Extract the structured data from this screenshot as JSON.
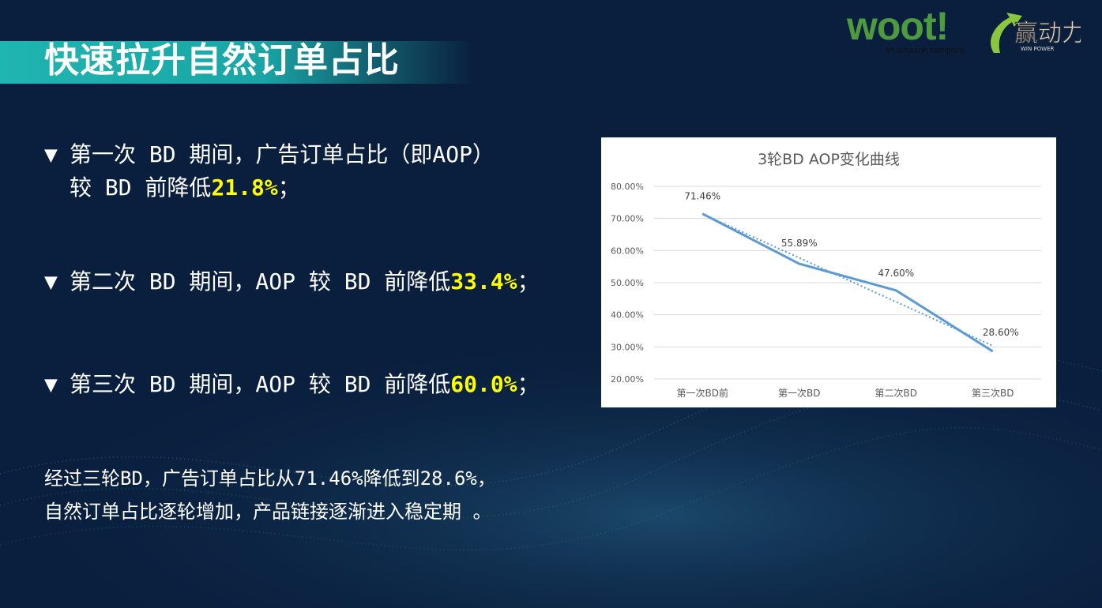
{
  "slide": {
    "title": "快速拉升自然订单占比",
    "logos": {
      "woot": "woot!",
      "woot_sub": "an amazon company",
      "winpower": "赢动力 WIN POWER"
    },
    "bullets": [
      {
        "icon": "triangle-down-icon",
        "line1": "第一次 BD 期间，广告订单占比（即AOP）",
        "line2_prefix": "较 BD 前降低",
        "highlight": "21.8%",
        "suffix": "；"
      },
      {
        "icon": "triangle-down-icon",
        "line1_prefix": "第二次 BD 期间，AOP 较 BD 前降低",
        "highlight": "33.4%",
        "suffix": "；"
      },
      {
        "icon": "triangle-down-icon",
        "line1_prefix": "第三次 BD 期间，AOP 较 BD 前降低",
        "highlight": "60.0%",
        "suffix": "；"
      }
    ],
    "summary": [
      "经过三轮BD，广告订单占比从71.46%降低到28.6%，",
      "自然订单占比逐轮增加，产品链接逐渐进入稳定期 。"
    ],
    "colors": {
      "background": "#0a1f3e",
      "accent": "#1fb5b0",
      "highlight": "#ffff00",
      "line": "#5b9bd5"
    }
  },
  "chart_data": {
    "type": "line",
    "title": "3轮BD AOP变化曲线",
    "categories": [
      "第一次BD前",
      "第一次BD",
      "第二次BD",
      "第三次BD"
    ],
    "series": [
      {
        "values": [
          71.46,
          55.89,
          47.6,
          28.6
        ]
      }
    ],
    "data_labels": [
      "71.46%",
      "55.89%",
      "47.60%",
      "28.60%"
    ],
    "trendline": "linear (dotted)",
    "ylim": [
      20,
      80
    ],
    "yticks": [
      "20.00%",
      "30.00%",
      "40.00%",
      "50.00%",
      "60.00%",
      "70.00%",
      "80.00%"
    ],
    "grid": true,
    "legend": "none"
  }
}
